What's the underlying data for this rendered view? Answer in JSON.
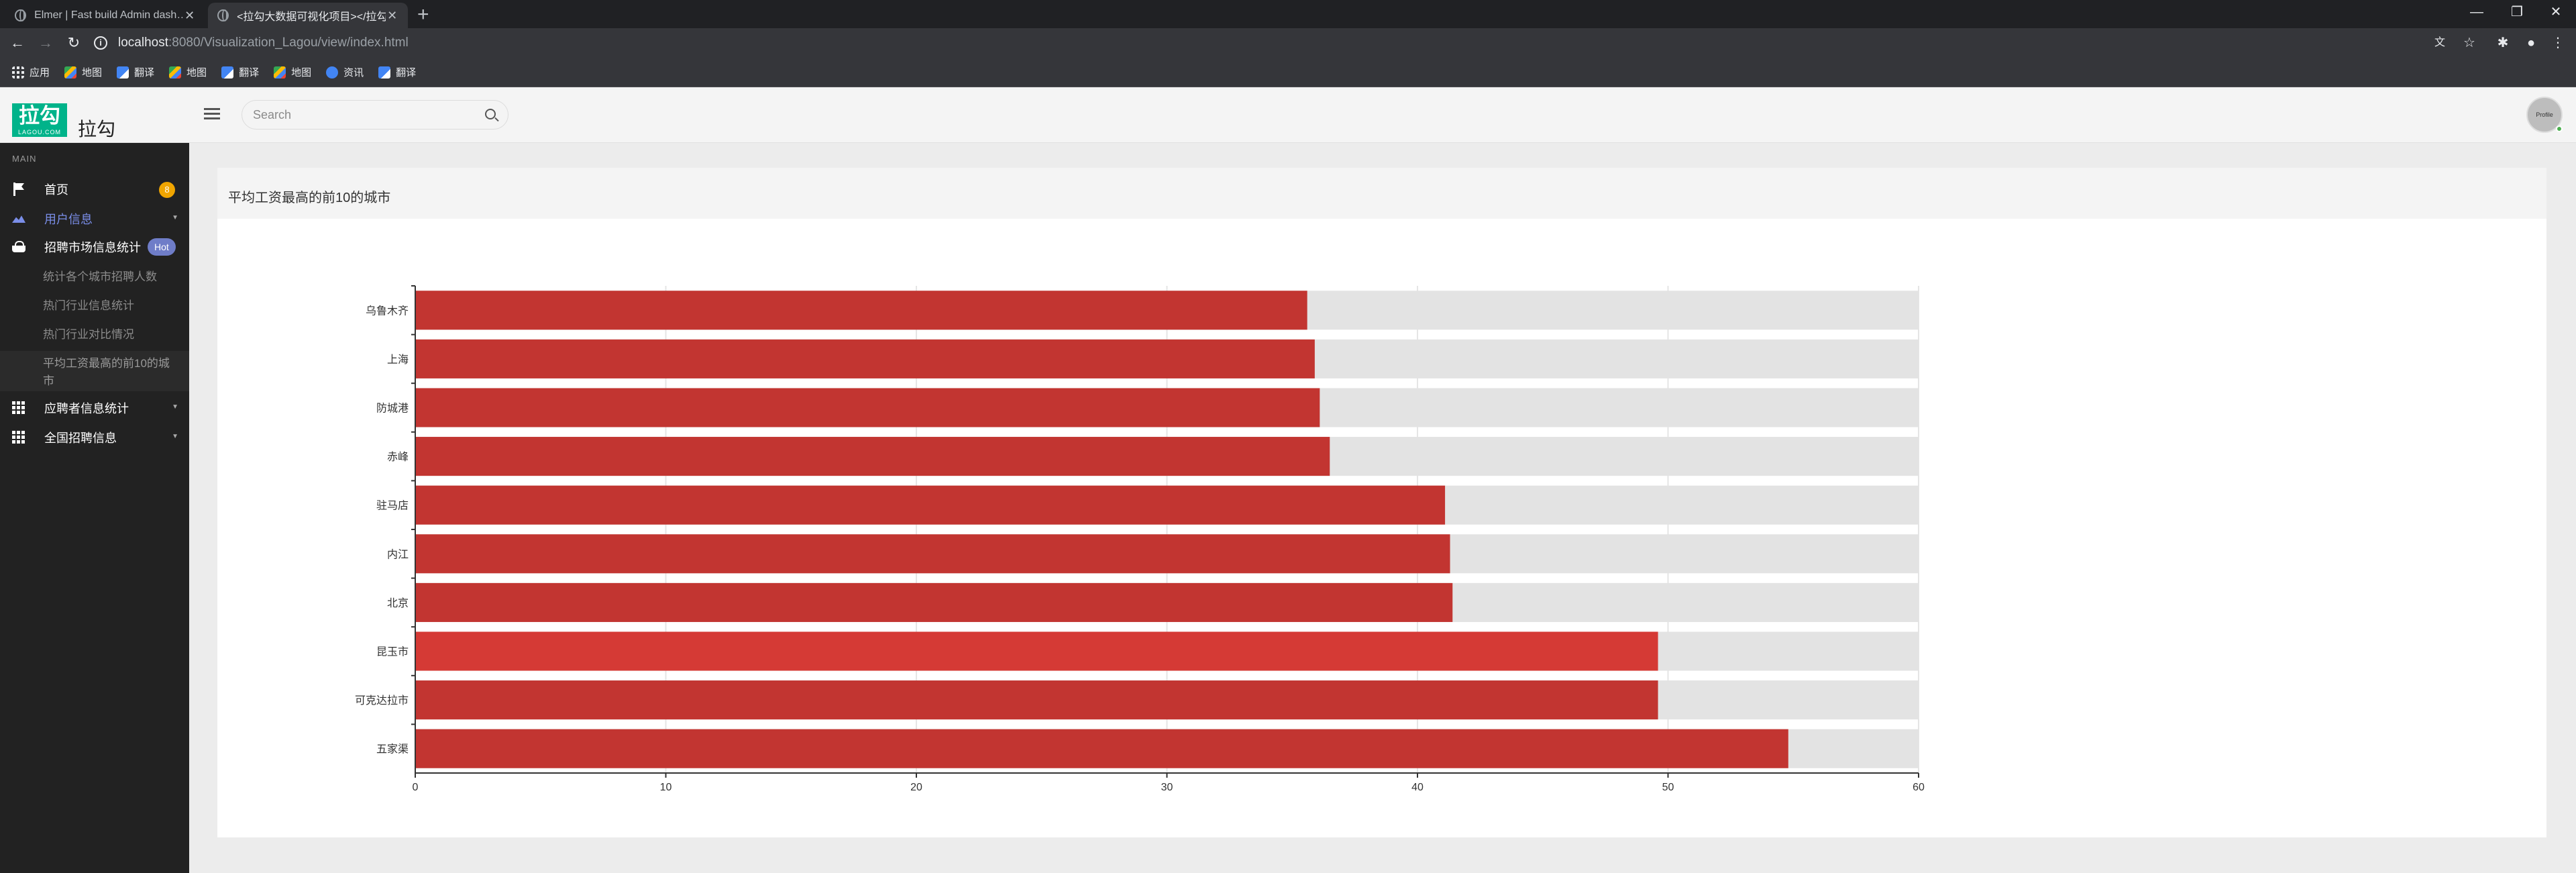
{
  "browser": {
    "tabs": [
      {
        "title": "Elmer | Fast build Admin dash…",
        "active": false
      },
      {
        "title": "<拉勾大数据可视化项目></拉勾…",
        "active": true
      }
    ],
    "url_host": "localhost",
    "url_path": ":8080/Visualization_Lagou/view/index.html",
    "bookmarks": [
      {
        "label": "应用",
        "icon": "apps-grid-icon"
      },
      {
        "label": "地图",
        "icon": "maps-icon"
      },
      {
        "label": "翻译",
        "icon": "translate-icon"
      },
      {
        "label": "地图",
        "icon": "maps-icon"
      },
      {
        "label": "翻译",
        "icon": "translate-icon"
      },
      {
        "label": "地图",
        "icon": "maps-icon"
      },
      {
        "label": "资讯",
        "icon": "news-icon"
      },
      {
        "label": "翻译",
        "icon": "translate-icon"
      }
    ]
  },
  "header": {
    "logo_big": "拉勾",
    "logo_small": "LAGOU.COM",
    "logo_text": "拉勾",
    "search_placeholder": "Search",
    "avatar_label": "Profile"
  },
  "sidebar": {
    "section": "MAIN",
    "items": [
      {
        "label": "首页",
        "icon": "flag-icon",
        "badge": "8"
      },
      {
        "label": "用户信息",
        "icon": "mountain-icon"
      },
      {
        "label": "招聘市场信息统计",
        "icon": "basket-icon",
        "badge": "Hot"
      },
      {
        "label": "应聘者信息统计",
        "icon": "grid-icon"
      },
      {
        "label": "全国招聘信息",
        "icon": "grid-icon"
      }
    ],
    "subitems": [
      "统计各个城市招聘人数",
      "热门行业信息统计",
      "热门行业对比情况",
      "平均工资最高的前10的城市"
    ]
  },
  "card": {
    "title": "平均工资最高的前10的城市"
  },
  "chart_data": {
    "type": "bar",
    "orientation": "horizontal",
    "categories": [
      "乌鲁木齐",
      "上海",
      "防城港",
      "赤峰",
      "驻马店",
      "内江",
      "北京",
      "昆玉市",
      "可克达拉市",
      "五家渠"
    ],
    "values": [
      35.6,
      35.9,
      36.1,
      36.5,
      41.1,
      41.3,
      41.4,
      49.6,
      49.6,
      54.8
    ],
    "xlim": [
      0,
      60
    ],
    "xticks": [
      0,
      10,
      20,
      30,
      40,
      50,
      60
    ],
    "grid": true,
    "background_bar": true,
    "colors": {
      "bar": "#c23531",
      "highlight": "#d53a35",
      "background": "#e3e3e3",
      "grid": "#e5e5e5",
      "axis": "#333333"
    },
    "highlight_index": 7
  }
}
